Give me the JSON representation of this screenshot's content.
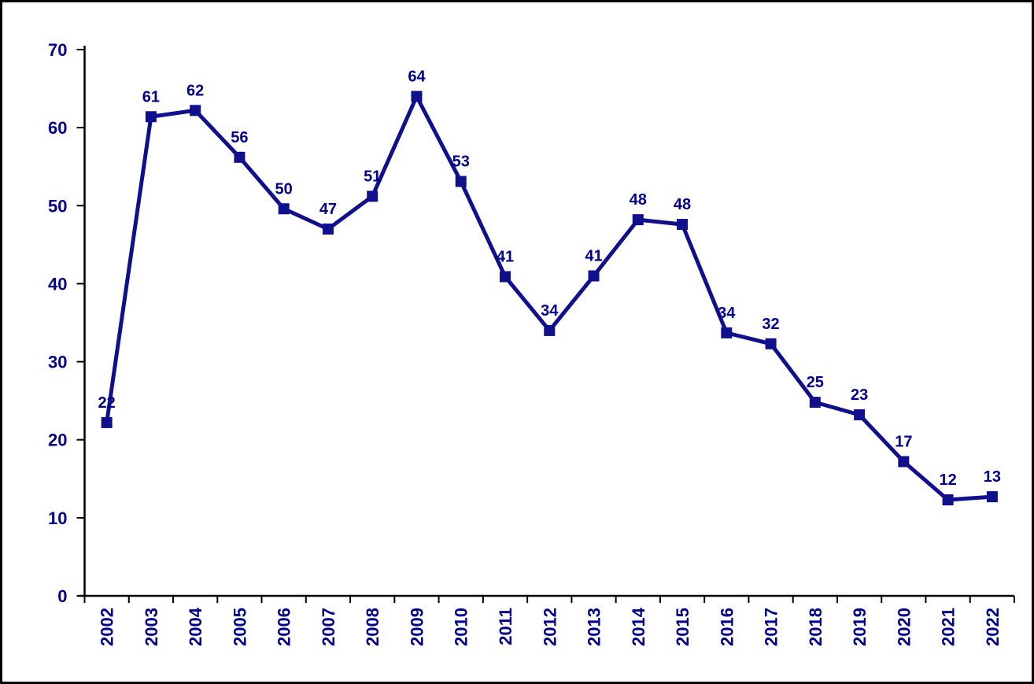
{
  "chart_data": {
    "type": "line",
    "title": "",
    "xlabel": "",
    "ylabel": "",
    "categories": [
      "2002",
      "2003",
      "2004",
      "2005",
      "2006",
      "2007",
      "2008",
      "2009",
      "2010",
      "2011",
      "2012",
      "2013",
      "2014",
      "2015",
      "2016",
      "2017",
      "2018",
      "2019",
      "2020",
      "2021",
      "2022"
    ],
    "series": [
      {
        "name": "value",
        "values": [
          22.2,
          61.4,
          62.2,
          56.2,
          49.6,
          47.0,
          51.2,
          64.0,
          53.1,
          40.9,
          34.0,
          41.0,
          48.2,
          47.6,
          33.7,
          32.3,
          24.8,
          23.2,
          17.2,
          12.3,
          12.7
        ],
        "point_labels": [
          "22",
          "61",
          "62",
          "56",
          "50",
          "47",
          "51",
          "64",
          "53",
          "41",
          "34",
          "41",
          "48",
          "48",
          "34",
          "32",
          "25",
          "23",
          "17",
          "12",
          "13"
        ]
      }
    ],
    "ylim": [
      0,
      70
    ],
    "ytick_step": 10,
    "y_tick_labels": [
      "0",
      "10",
      "20",
      "30",
      "40",
      "50",
      "60",
      "70"
    ],
    "grid": false,
    "legend": false,
    "marker": "square",
    "colors": {
      "line": "#10108C",
      "marker": "#10108C",
      "data_label_text": "#00008B",
      "axis_tick_text": "#00008B",
      "axis_line": "#000000",
      "background": "#FFFFFF",
      "outer_border": "#000000"
    }
  }
}
